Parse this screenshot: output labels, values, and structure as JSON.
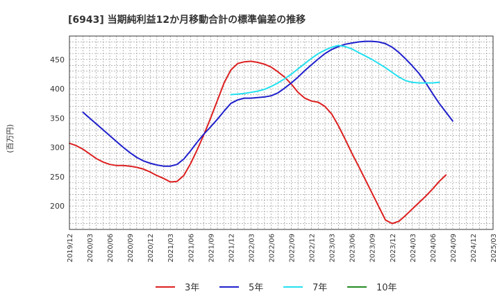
{
  "chart_data": {
    "type": "line",
    "title": "[6943]  当期純利益12か月移動合計の標準偏差の推移",
    "ylabel": "(百万円)",
    "xlabel": "",
    "ylim": [
      160,
      490
    ],
    "yticks": [
      200,
      250,
      300,
      350,
      400,
      450
    ],
    "xlim": [
      "2019-12",
      "2025-03"
    ],
    "xticks": [
      "2019/12",
      "2020/03",
      "2020/06",
      "2020/09",
      "2020/12",
      "2021/03",
      "2021/06",
      "2021/09",
      "2021/12",
      "2022/03",
      "2022/06",
      "2022/09",
      "2022/12",
      "2023/03",
      "2023/06",
      "2023/09",
      "2023/12",
      "2024/03",
      "2024/06",
      "2024/09",
      "2024/12",
      "2025/03"
    ],
    "grid": true,
    "legend_position": "bottom",
    "series": [
      {
        "name": "3年",
        "color": "#dd1f1f",
        "points": [
          [
            "2019-12",
            307
          ],
          [
            "2020-01",
            303
          ],
          [
            "2020-02",
            297
          ],
          [
            "2020-03",
            289
          ],
          [
            "2020-04",
            281
          ],
          [
            "2020-05",
            275
          ],
          [
            "2020-06",
            271
          ],
          [
            "2020-07",
            269
          ],
          [
            "2020-08",
            269
          ],
          [
            "2020-09",
            268
          ],
          [
            "2020-10",
            266
          ],
          [
            "2020-11",
            263
          ],
          [
            "2020-12",
            258
          ],
          [
            "2021-01",
            252
          ],
          [
            "2021-02",
            247
          ],
          [
            "2021-03",
            241
          ],
          [
            "2021-04",
            242
          ],
          [
            "2021-05",
            252
          ],
          [
            "2021-06",
            272
          ],
          [
            "2021-07",
            296
          ],
          [
            "2021-08",
            322
          ],
          [
            "2021-09",
            350
          ],
          [
            "2021-10",
            380
          ],
          [
            "2021-11",
            410
          ],
          [
            "2021-12",
            432
          ],
          [
            "2022-01",
            443
          ],
          [
            "2022-02",
            446
          ],
          [
            "2022-03",
            447
          ],
          [
            "2022-04",
            445
          ],
          [
            "2022-05",
            442
          ],
          [
            "2022-06",
            437
          ],
          [
            "2022-07",
            429
          ],
          [
            "2022-08",
            420
          ],
          [
            "2022-09",
            408
          ],
          [
            "2022-10",
            394
          ],
          [
            "2022-11",
            384
          ],
          [
            "2022-12",
            379
          ],
          [
            "2023-01",
            377
          ],
          [
            "2023-02",
            370
          ],
          [
            "2023-03",
            357
          ],
          [
            "2023-04",
            337
          ],
          [
            "2023-05",
            314
          ],
          [
            "2023-06",
            290
          ],
          [
            "2023-07",
            268
          ],
          [
            "2023-08",
            245
          ],
          [
            "2023-09",
            222
          ],
          [
            "2023-10",
            199
          ],
          [
            "2023-11",
            176
          ],
          [
            "2023-12",
            170
          ],
          [
            "2024-01",
            174
          ],
          [
            "2024-02",
            184
          ],
          [
            "2024-03",
            195
          ],
          [
            "2024-04",
            206
          ],
          [
            "2024-05",
            217
          ],
          [
            "2024-06",
            229
          ],
          [
            "2024-07",
            242
          ],
          [
            "2024-08",
            253
          ]
        ]
      },
      {
        "name": "5年",
        "color": "#1f1fcc",
        "points": [
          [
            "2020-02",
            360
          ],
          [
            "2020-03",
            350
          ],
          [
            "2020-04",
            340
          ],
          [
            "2020-05",
            330
          ],
          [
            "2020-06",
            320
          ],
          [
            "2020-07",
            310
          ],
          [
            "2020-08",
            300
          ],
          [
            "2020-09",
            291
          ],
          [
            "2020-10",
            283
          ],
          [
            "2020-11",
            277
          ],
          [
            "2020-12",
            273
          ],
          [
            "2021-01",
            270
          ],
          [
            "2021-02",
            268
          ],
          [
            "2021-03",
            268
          ],
          [
            "2021-04",
            271
          ],
          [
            "2021-05",
            280
          ],
          [
            "2021-06",
            294
          ],
          [
            "2021-07",
            309
          ],
          [
            "2021-08",
            323
          ],
          [
            "2021-09",
            335
          ],
          [
            "2021-10",
            348
          ],
          [
            "2021-11",
            362
          ],
          [
            "2021-12",
            375
          ],
          [
            "2022-01",
            381
          ],
          [
            "2022-02",
            384
          ],
          [
            "2022-03",
            384
          ],
          [
            "2022-04",
            385
          ],
          [
            "2022-05",
            386
          ],
          [
            "2022-06",
            388
          ],
          [
            "2022-07",
            393
          ],
          [
            "2022-08",
            401
          ],
          [
            "2022-09",
            410
          ],
          [
            "2022-10",
            420
          ],
          [
            "2022-11",
            431
          ],
          [
            "2022-12",
            441
          ],
          [
            "2023-01",
            451
          ],
          [
            "2023-02",
            460
          ],
          [
            "2023-03",
            467
          ],
          [
            "2023-04",
            472
          ],
          [
            "2023-05",
            476
          ],
          [
            "2023-06",
            478
          ],
          [
            "2023-07",
            480
          ],
          [
            "2023-08",
            481
          ],
          [
            "2023-09",
            481
          ],
          [
            "2023-10",
            480
          ],
          [
            "2023-11",
            477
          ],
          [
            "2023-12",
            471
          ],
          [
            "2024-01",
            462
          ],
          [
            "2024-02",
            451
          ],
          [
            "2024-03",
            439
          ],
          [
            "2024-04",
            426
          ],
          [
            "2024-05",
            410
          ],
          [
            "2024-06",
            392
          ],
          [
            "2024-07",
            375
          ],
          [
            "2024-08",
            360
          ],
          [
            "2024-09",
            345
          ]
        ]
      },
      {
        "name": "7年",
        "color": "#22e0f0",
        "points": [
          [
            "2021-12",
            390
          ],
          [
            "2022-01",
            391
          ],
          [
            "2022-02",
            392
          ],
          [
            "2022-03",
            394
          ],
          [
            "2022-04",
            396
          ],
          [
            "2022-05",
            399
          ],
          [
            "2022-06",
            404
          ],
          [
            "2022-07",
            410
          ],
          [
            "2022-08",
            417
          ],
          [
            "2022-09",
            425
          ],
          [
            "2022-10",
            434
          ],
          [
            "2022-11",
            443
          ],
          [
            "2022-12",
            452
          ],
          [
            "2023-01",
            460
          ],
          [
            "2023-02",
            466
          ],
          [
            "2023-03",
            471
          ],
          [
            "2023-04",
            474
          ],
          [
            "2023-05",
            472
          ],
          [
            "2023-06",
            468
          ],
          [
            "2023-07",
            462
          ],
          [
            "2023-08",
            456
          ],
          [
            "2023-09",
            450
          ],
          [
            "2023-10",
            443
          ],
          [
            "2023-11",
            436
          ],
          [
            "2023-12",
            428
          ],
          [
            "2024-01",
            420
          ],
          [
            "2024-02",
            414
          ],
          [
            "2024-03",
            411
          ],
          [
            "2024-04",
            410
          ],
          [
            "2024-05",
            410
          ],
          [
            "2024-06",
            410
          ],
          [
            "2024-07",
            411
          ]
        ]
      },
      {
        "name": "10年",
        "color": "#228b22",
        "points": []
      }
    ]
  }
}
